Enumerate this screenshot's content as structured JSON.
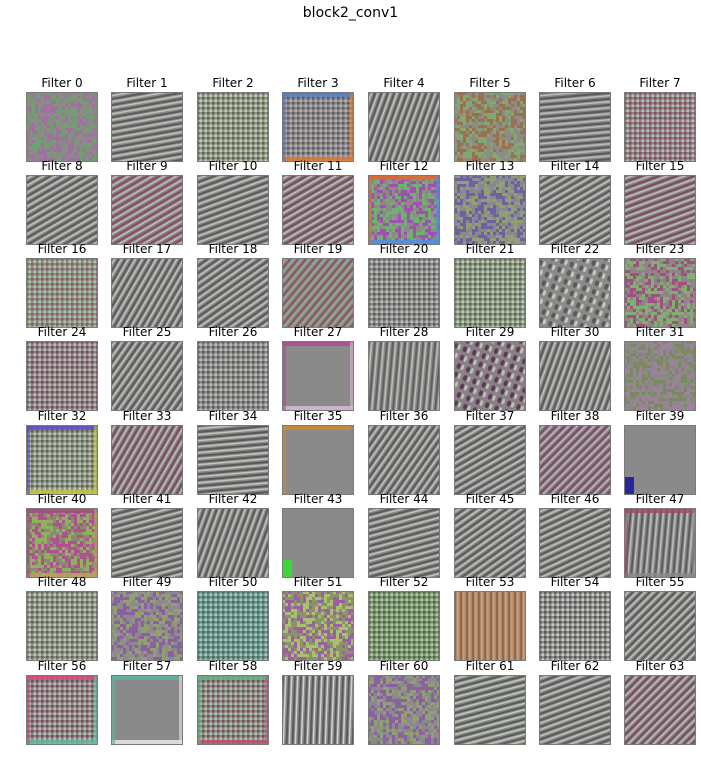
{
  "title": "block2_conv1",
  "filters": [
    {
      "label": "Filter 0",
      "base": "#8c8a84",
      "c1": "#a070a0",
      "c2": "#70a070",
      "kind": "noise",
      "angle": 0
    },
    {
      "label": "Filter 1",
      "base": "#8c8c8a",
      "c1": "#5a5a5a",
      "c2": "#c0c0bc",
      "kind": "stripes",
      "angle": 80
    },
    {
      "label": "Filter 2",
      "base": "#8c9484",
      "c1": "#5e6658",
      "c2": "#c4ccb8",
      "kind": "checker",
      "angle": 0
    },
    {
      "label": "Filter 3",
      "base": "#8a8a86",
      "c1": "#5c5c5c",
      "c2": "#b8a8b8",
      "kind": "checker",
      "angle": 0,
      "border": "#4f7fc8",
      "border2": "#e07a30"
    },
    {
      "label": "Filter 4",
      "base": "#8a8a88",
      "c1": "#5a5a5a",
      "c2": "#c0c0bc",
      "kind": "stripes",
      "angle": 20
    },
    {
      "label": "Filter 5",
      "base": "#8c8c84",
      "c1": "#9a7050",
      "c2": "#80a870",
      "kind": "noise",
      "angle": 0
    },
    {
      "label": "Filter 6",
      "base": "#8a8a8a",
      "c1": "#585858",
      "c2": "#bcbcbc",
      "kind": "stripes",
      "angle": 85
    },
    {
      "label": "Filter 7",
      "base": "#8a8486",
      "c1": "#8a4a66",
      "c2": "#b8c0b0",
      "kind": "checker",
      "angle": 0
    },
    {
      "label": "Filter 8",
      "base": "#8a8a88",
      "c1": "#5a5a5a",
      "c2": "#c0c0bc",
      "kind": "stripes",
      "angle": 60
    },
    {
      "label": "Filter 9",
      "base": "#8a8486",
      "c1": "#8a4a66",
      "c2": "#b8c0b0",
      "kind": "stripes",
      "angle": 60
    },
    {
      "label": "Filter 10",
      "base": "#8a8a88",
      "c1": "#5a5a5a",
      "c2": "#c0c0bc",
      "kind": "stripes",
      "angle": 70
    },
    {
      "label": "Filter 11",
      "base": "#8a8486",
      "c1": "#7a4a60",
      "c2": "#bcc0b8",
      "kind": "stripes",
      "angle": 60
    },
    {
      "label": "Filter 12",
      "base": "#8c8a84",
      "c1": "#a050b0",
      "c2": "#70b070",
      "kind": "noise",
      "angle": 0,
      "border": "#e06a30",
      "border2": "#4f8fe0"
    },
    {
      "label": "Filter 13",
      "base": "#888890",
      "c1": "#7060a0",
      "c2": "#90a070",
      "kind": "noise",
      "angle": 0
    },
    {
      "label": "Filter 14",
      "base": "#8a8a88",
      "c1": "#5a5a5a",
      "c2": "#c0c0bc",
      "kind": "stripes",
      "angle": 60
    },
    {
      "label": "Filter 15",
      "base": "#8a8486",
      "c1": "#7a4a60",
      "c2": "#b8c0b0",
      "kind": "stripes",
      "angle": 70
    },
    {
      "label": "Filter 16",
      "base": "#8c9084",
      "c1": "#8a5a70",
      "c2": "#a8c8a0",
      "kind": "checker",
      "angle": 0
    },
    {
      "label": "Filter 17",
      "base": "#8a8a88",
      "c1": "#5a5a5a",
      "c2": "#c0c0bc",
      "kind": "stripes",
      "angle": 30
    },
    {
      "label": "Filter 18",
      "base": "#8a8a88",
      "c1": "#5a5a5a",
      "c2": "#c0c0bc",
      "kind": "stripes",
      "angle": 55
    },
    {
      "label": "Filter 19",
      "base": "#8c8a86",
      "c1": "#8a5070",
      "c2": "#90b080",
      "kind": "stripes",
      "angle": 40
    },
    {
      "label": "Filter 20",
      "base": "#8a8a88",
      "c1": "#5c5c5c",
      "c2": "#bcbcb8",
      "kind": "checker",
      "angle": 0
    },
    {
      "label": "Filter 21",
      "base": "#8c9484",
      "c1": "#5e6658",
      "c2": "#b8d0b0",
      "kind": "checker",
      "angle": 0
    },
    {
      "label": "Filter 22",
      "base": "#8a8a88",
      "c1": "#5a5a5a",
      "c2": "#c8c8c4",
      "kind": "dots",
      "angle": 0
    },
    {
      "label": "Filter 23",
      "base": "#908488",
      "c1": "#a05080",
      "c2": "#80b070",
      "kind": "noise",
      "angle": 0
    },
    {
      "label": "Filter 24",
      "base": "#8a8486",
      "c1": "#7a4a60",
      "c2": "#b8c0b0",
      "kind": "checker",
      "angle": 0
    },
    {
      "label": "Filter 25",
      "base": "#8a8a88",
      "c1": "#5a5a5a",
      "c2": "#c0c0bc",
      "kind": "stripes",
      "angle": 35
    },
    {
      "label": "Filter 26",
      "base": "#8a8a88",
      "c1": "#5c5c5c",
      "c2": "#bcbcb8",
      "kind": "checker",
      "angle": 0
    },
    {
      "label": "Filter 27",
      "base": "#8a8a8a",
      "c1": "#5c5c5c",
      "c2": "#bcbcbc",
      "kind": "flat",
      "angle": 0,
      "border": "#b04a90",
      "border2": "#d8b8d8"
    },
    {
      "label": "Filter 28",
      "base": "#8a8a88",
      "c1": "#606060",
      "c2": "#bcbcb8",
      "kind": "stripes",
      "angle": 5
    },
    {
      "label": "Filter 29",
      "base": "#8a7e88",
      "c1": "#5a3a50",
      "c2": "#b8c8b0",
      "kind": "dots",
      "angle": 0
    },
    {
      "label": "Filter 30",
      "base": "#8a8a88",
      "c1": "#5a5a5a",
      "c2": "#c0c0bc",
      "kind": "stripes",
      "angle": 20
    },
    {
      "label": "Filter 31",
      "base": "#8a8a84",
      "c1": "#7a8a60",
      "c2": "#a080a0",
      "kind": "noise",
      "angle": 0
    },
    {
      "label": "Filter 32",
      "base": "#8c9084",
      "c1": "#5e6658",
      "c2": "#b8c8b0",
      "kind": "checker",
      "angle": 0,
      "border": "#5a4ad0",
      "border2": "#c8c840"
    },
    {
      "label": "Filter 33",
      "base": "#8a8486",
      "c1": "#7a4a60",
      "c2": "#b8c0b0",
      "kind": "stripes",
      "angle": 30
    },
    {
      "label": "Filter 34",
      "base": "#8a8a88",
      "c1": "#585858",
      "c2": "#c4c4c0",
      "kind": "stripes",
      "angle": 85
    },
    {
      "label": "Filter 35",
      "base": "#8a8a8a",
      "c1": "#6a6a6a",
      "c2": "#a8a8a8",
      "kind": "flat",
      "angle": 0,
      "border": "#d08a30",
      "border2": "#8a8a8a"
    },
    {
      "label": "Filter 36",
      "base": "#8a8a88",
      "c1": "#5a5a5a",
      "c2": "#c0c0bc",
      "kind": "stripes",
      "angle": 35
    },
    {
      "label": "Filter 37",
      "base": "#8a8a88",
      "c1": "#5a5a5a",
      "c2": "#c0c0bc",
      "kind": "stripes",
      "angle": 60
    },
    {
      "label": "Filter 38",
      "base": "#8a7e86",
      "c1": "#7a4a66",
      "c2": "#b8b8b8",
      "kind": "stripes",
      "angle": 45
    },
    {
      "label": "Filter 39",
      "base": "#8a8a8a",
      "c1": "#7a7a7a",
      "c2": "#9a9a9a",
      "kind": "flat",
      "angle": 0,
      "corner": "#1a1aa0"
    },
    {
      "label": "Filter 40",
      "base": "#8a8a70",
      "c1": "#b05090",
      "c2": "#90b060",
      "kind": "noise",
      "angle": 0,
      "border": "#a04a80",
      "border2": "#c0a060"
    },
    {
      "label": "Filter 41",
      "base": "#8a8a88",
      "c1": "#5a5a5a",
      "c2": "#c0c0bc",
      "kind": "stripes",
      "angle": 75
    },
    {
      "label": "Filter 42",
      "base": "#8a8a88",
      "c1": "#5a5a5a",
      "c2": "#c0c0bc",
      "kind": "stripes",
      "angle": 20
    },
    {
      "label": "Filter 43",
      "base": "#8a8a8a",
      "c1": "#7a7a7a",
      "c2": "#9a9a9a",
      "kind": "flat",
      "angle": 0,
      "corner": "#30e030"
    },
    {
      "label": "Filter 44",
      "base": "#8a8a88",
      "c1": "#5a5a5a",
      "c2": "#c0c0bc",
      "kind": "stripes",
      "angle": 75
    },
    {
      "label": "Filter 45",
      "base": "#8a8a88",
      "c1": "#5a5a5a",
      "c2": "#c0c0bc",
      "kind": "stripes",
      "angle": 55
    },
    {
      "label": "Filter 46",
      "base": "#8a8a88",
      "c1": "#5a5a5a",
      "c2": "#c0c0bc",
      "kind": "stripes",
      "angle": 65
    },
    {
      "label": "Filter 47",
      "base": "#8a8a8a",
      "c1": "#5c5c5c",
      "c2": "#bcbcbc",
      "kind": "stripes",
      "angle": 5,
      "border": "#a04a70",
      "border2": "#8a8a8a"
    },
    {
      "label": "Filter 48",
      "base": "#8c9084",
      "c1": "#5e6658",
      "c2": "#c0c8b8",
      "kind": "checker",
      "angle": 0
    },
    {
      "label": "Filter 49",
      "base": "#8c8a8c",
      "c1": "#8a60a0",
      "c2": "#90a070",
      "kind": "noise",
      "angle": 0
    },
    {
      "label": "Filter 50",
      "base": "#6a948c",
      "c1": "#4a6a66",
      "c2": "#a8c8c0",
      "kind": "checker",
      "angle": 0
    },
    {
      "label": "Filter 51",
      "base": "#8a9468",
      "c1": "#9a60a0",
      "c2": "#a8c070",
      "kind": "noise",
      "angle": 0
    },
    {
      "label": "Filter 52",
      "base": "#7a9470",
      "c1": "#4e6848",
      "c2": "#b0c8a8",
      "kind": "checker",
      "angle": 0
    },
    {
      "label": "Filter 53",
      "base": "#b08868",
      "c1": "#906a50",
      "c2": "#c8a080",
      "kind": "stripes",
      "angle": 0
    },
    {
      "label": "Filter 54",
      "base": "#8a8a88",
      "c1": "#585858",
      "c2": "#c8c8c4",
      "kind": "checker",
      "angle": 0
    },
    {
      "label": "Filter 55",
      "base": "#8a8a88",
      "c1": "#5a5a5a",
      "c2": "#c0c0bc",
      "kind": "stripes",
      "angle": 45
    },
    {
      "label": "Filter 56",
      "base": "#8a8486",
      "c1": "#7a4a60",
      "c2": "#b8c0b0",
      "kind": "checker",
      "angle": 0,
      "border": "#d04a80",
      "border2": "#60c0a0"
    },
    {
      "label": "Filter 57",
      "base": "#8a8a8a",
      "c1": "#7a7a7a",
      "c2": "#9a9a9a",
      "kind": "flat",
      "angle": 0,
      "border": "#60b0a0",
      "border2": "#e8e8e8"
    },
    {
      "label": "Filter 58",
      "base": "#8c8a86",
      "c1": "#7a4a60",
      "c2": "#a8c8a8",
      "kind": "checker",
      "angle": 0,
      "border": "#60b080",
      "border2": "#c05070"
    },
    {
      "label": "Filter 59",
      "base": "#8a8a8a",
      "c1": "#5a5a5a",
      "c2": "#d0d0d0",
      "kind": "stripes",
      "angle": 2
    },
    {
      "label": "Filter 60",
      "base": "#8a8a8c",
      "c1": "#8a60a0",
      "c2": "#90a070",
      "kind": "noise",
      "angle": 0
    },
    {
      "label": "Filter 61",
      "base": "#8a8e88",
      "c1": "#5a5a5a",
      "c2": "#c0c8bc",
      "kind": "stripes",
      "angle": 75
    },
    {
      "label": "Filter 62",
      "base": "#8a8a88",
      "c1": "#5a5a5a",
      "c2": "#c0c0bc",
      "kind": "stripes",
      "angle": 70
    },
    {
      "label": "Filter 63",
      "base": "#8a8486",
      "c1": "#7a4a60",
      "c2": "#b8c0b0",
      "kind": "stripes",
      "angle": 45
    }
  ]
}
